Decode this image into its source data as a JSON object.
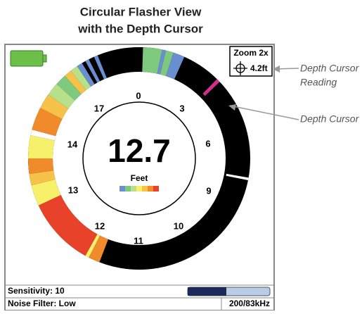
{
  "title": {
    "line1": "Circular Flasher View",
    "line2": "with the Depth Cursor"
  },
  "screen": {
    "zoom": "Zoom 2x",
    "cursor_depth": "4.2ft",
    "dial_labels": [
      "0",
      "3",
      "6",
      "9",
      "10",
      "11",
      "12",
      "13",
      "14",
      "17"
    ],
    "depth": "12.7",
    "units": "Feet",
    "status": {
      "sensitivity": "Sensitivity: 10",
      "noise_filter": "Noise Filter: Low",
      "frequency": "200/83kHz"
    }
  },
  "callouts": {
    "reading_line1": "Depth Cursor",
    "reading_line2": "Reading",
    "cursor": "Depth Cursor"
  }
}
